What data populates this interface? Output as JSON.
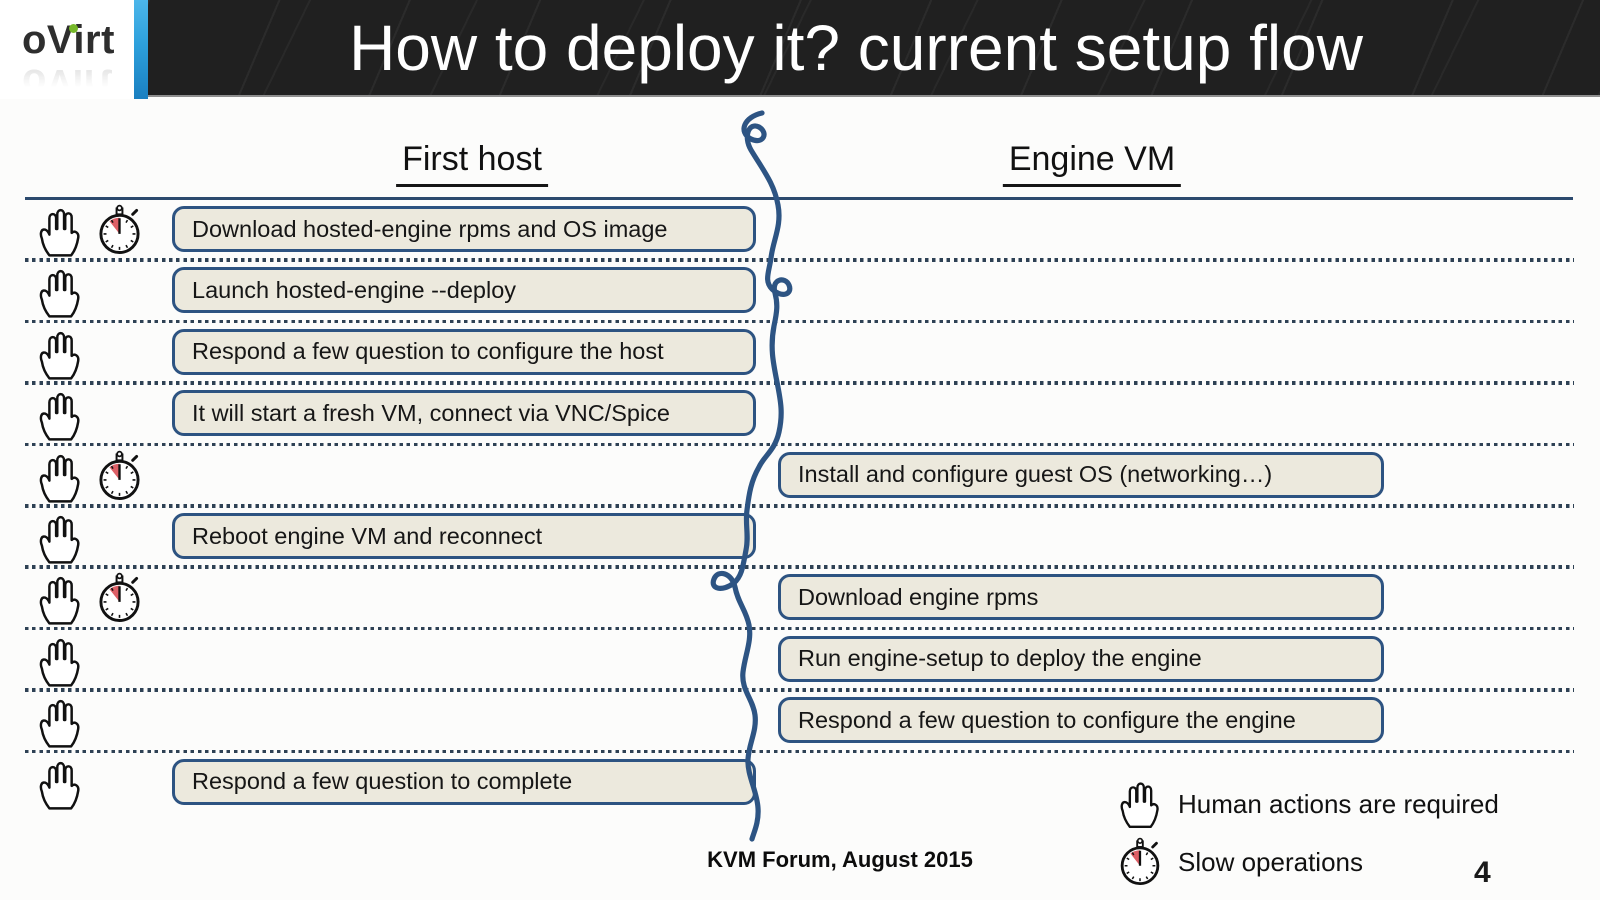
{
  "slide": {
    "logo_text": "oVirt",
    "title": "How to deploy it? current setup flow",
    "credit": "KVM Forum, August 2015",
    "page_number": "4"
  },
  "columns": {
    "left_title": "First host",
    "right_title": "Engine VM"
  },
  "steps": [
    {
      "actor": "first-host",
      "label": "Download hosted-engine rpms and OS image",
      "human_action": true,
      "slow_operation": true
    },
    {
      "actor": "first-host",
      "label": "Launch hosted-engine --deploy",
      "human_action": true,
      "slow_operation": false
    },
    {
      "actor": "first-host",
      "label": "Respond a few question to configure the host",
      "human_action": true,
      "slow_operation": false
    },
    {
      "actor": "first-host",
      "label": "It will start a fresh VM, connect via VNC/Spice",
      "human_action": true,
      "slow_operation": false
    },
    {
      "actor": "engine-vm",
      "label": "Install and configure guest OS (networking…)",
      "human_action": true,
      "slow_operation": true
    },
    {
      "actor": "first-host",
      "label": "Reboot engine VM and reconnect",
      "human_action": true,
      "slow_operation": false
    },
    {
      "actor": "engine-vm",
      "label": "Download engine rpms",
      "human_action": true,
      "slow_operation": true
    },
    {
      "actor": "engine-vm",
      "label": "Run engine-setup to deploy the engine",
      "human_action": true,
      "slow_operation": false
    },
    {
      "actor": "engine-vm",
      "label": "Respond a few question to configure the engine",
      "human_action": true,
      "slow_operation": false
    },
    {
      "actor": "first-host",
      "label": "Respond a few question to complete",
      "human_action": true,
      "slow_operation": false
    }
  ],
  "legend": [
    {
      "icon": "hand-icon",
      "label": "Human actions are required"
    },
    {
      "icon": "stopwatch-icon",
      "label": "Slow operations"
    }
  ],
  "colors": {
    "accent_bar_blue": "#2da0dc",
    "header_bg": "#202020",
    "box_fill": "#ece9dd",
    "box_border": "#2d5381",
    "squiggle_blue": "#2d5483",
    "dotted_line": "#2e4154",
    "stopwatch_red": "#dd5f66",
    "logo_green": "#76b82a"
  }
}
